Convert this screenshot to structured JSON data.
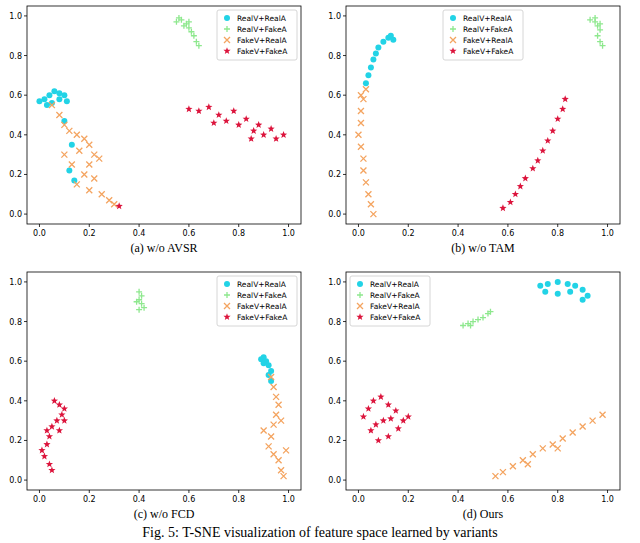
{
  "chart_data": [
    {
      "type": "scatter",
      "title": "(a) w/o AVSR",
      "legend": "upper right",
      "xlim": [
        -0.05,
        1.05
      ],
      "ylim": [
        -0.05,
        1.05
      ],
      "xticks": [
        {
          "value": 0,
          "label": "0.0"
        },
        {
          "value": 0.2,
          "label": "0.2"
        },
        {
          "value": 0.4,
          "label": "0.4"
        },
        {
          "value": 0.6,
          "label": "0.6"
        },
        {
          "value": 0.8,
          "label": "0.8"
        },
        {
          "value": 1,
          "label": "1.0"
        }
      ],
      "yticks": [
        {
          "value": 0,
          "label": "0.0"
        },
        {
          "value": 0.2,
          "label": "0.2"
        },
        {
          "value": 0.4,
          "label": "0.4"
        },
        {
          "value": 0.6,
          "label": "0.6"
        },
        {
          "value": 0.8,
          "label": "0.8"
        },
        {
          "value": 1,
          "label": "1.0"
        }
      ],
      "series": [
        {
          "name": "RealV+RealA",
          "color": "#22d3e6",
          "marker": "circle",
          "x": [
            0.0,
            0.02,
            0.04,
            0.06,
            0.08,
            0.1,
            0.05,
            0.08,
            0.11,
            0.03,
            0.13,
            0.14,
            0.1,
            0.12
          ],
          "values": [
            0.57,
            0.58,
            0.6,
            0.62,
            0.61,
            0.6,
            0.56,
            0.58,
            0.57,
            0.55,
            0.35,
            0.17,
            0.47,
            0.22
          ]
        },
        {
          "name": "RealV+FakeA",
          "color": "#8ee88e",
          "marker": "plus",
          "x": [
            0.55,
            0.57,
            0.59,
            0.6,
            0.61,
            0.62,
            0.63,
            0.64,
            0.58,
            0.56,
            0.6
          ],
          "values": [
            0.97,
            0.98,
            0.96,
            0.94,
            0.92,
            0.9,
            0.87,
            0.85,
            0.95,
            0.99,
            0.97
          ]
        },
        {
          "name": "FakeV+RealA",
          "color": "#f4a460",
          "marker": "x",
          "x": [
            0.05,
            0.08,
            0.1,
            0.12,
            0.15,
            0.18,
            0.2,
            0.22,
            0.2,
            0.18,
            0.15,
            0.2,
            0.25,
            0.28,
            0.3,
            0.1,
            0.13,
            0.24,
            0.16,
            0.22
          ],
          "values": [
            0.55,
            0.5,
            0.45,
            0.42,
            0.4,
            0.38,
            0.35,
            0.3,
            0.25,
            0.2,
            0.15,
            0.12,
            0.1,
            0.07,
            0.05,
            0.3,
            0.25,
            0.28,
            0.32,
            0.18
          ]
        },
        {
          "name": "FakeV+FakeA",
          "color": "#dc143c",
          "marker": "star",
          "x": [
            0.6,
            0.64,
            0.68,
            0.72,
            0.75,
            0.78,
            0.8,
            0.83,
            0.86,
            0.88,
            0.9,
            0.93,
            0.95,
            0.98,
            0.85,
            0.7,
            0.32
          ],
          "values": [
            0.53,
            0.52,
            0.54,
            0.5,
            0.47,
            0.52,
            0.45,
            0.48,
            0.42,
            0.45,
            0.4,
            0.43,
            0.38,
            0.4,
            0.38,
            0.46,
            0.04
          ]
        }
      ]
    },
    {
      "type": "scatter",
      "title": "(b) w/o TAM",
      "legend": "upper center",
      "xlim": [
        -0.05,
        1.05
      ],
      "ylim": [
        -0.05,
        1.05
      ],
      "xticks": [
        {
          "value": 0,
          "label": "0.0"
        },
        {
          "value": 0.2,
          "label": "0.2"
        },
        {
          "value": 0.4,
          "label": "0.4"
        },
        {
          "value": 0.6,
          "label": "0.6"
        },
        {
          "value": 0.8,
          "label": "0.8"
        },
        {
          "value": 1,
          "label": "1.0"
        }
      ],
      "yticks": [
        {
          "value": 0,
          "label": "0.0"
        },
        {
          "value": 0.2,
          "label": "0.2"
        },
        {
          "value": 0.4,
          "label": "0.4"
        },
        {
          "value": 0.6,
          "label": "0.6"
        },
        {
          "value": 0.8,
          "label": "0.8"
        },
        {
          "value": 1,
          "label": "1.0"
        }
      ],
      "series": [
        {
          "name": "RealV+RealA",
          "color": "#22d3e6",
          "marker": "circle",
          "x": [
            0.03,
            0.04,
            0.05,
            0.06,
            0.07,
            0.08,
            0.1,
            0.12,
            0.13,
            0.14
          ],
          "values": [
            0.66,
            0.7,
            0.74,
            0.78,
            0.81,
            0.84,
            0.87,
            0.89,
            0.9,
            0.88
          ]
        },
        {
          "name": "RealV+FakeA",
          "color": "#8ee88e",
          "marker": "plus",
          "x": [
            0.93,
            0.95,
            0.96,
            0.97,
            0.96,
            0.97,
            0.98,
            0.95,
            0.97
          ],
          "values": [
            0.98,
            0.97,
            0.95,
            0.93,
            0.9,
            0.87,
            0.85,
            0.99,
            0.96
          ]
        },
        {
          "name": "FakeV+RealA",
          "color": "#f4a460",
          "marker": "x",
          "x": [
            0.03,
            0.02,
            0.01,
            0.01,
            0.0,
            0.01,
            0.02,
            0.02,
            0.03,
            0.04,
            0.05,
            0.06,
            0.01
          ],
          "values": [
            0.63,
            0.58,
            0.52,
            0.46,
            0.4,
            0.34,
            0.28,
            0.22,
            0.16,
            0.1,
            0.05,
            0.0,
            0.6
          ]
        },
        {
          "name": "FakeV+FakeA",
          "color": "#dc143c",
          "marker": "star",
          "x": [
            0.58,
            0.61,
            0.63,
            0.65,
            0.67,
            0.7,
            0.72,
            0.74,
            0.76,
            0.78,
            0.8,
            0.82,
            0.83
          ],
          "values": [
            0.03,
            0.06,
            0.1,
            0.14,
            0.18,
            0.23,
            0.27,
            0.32,
            0.37,
            0.42,
            0.48,
            0.53,
            0.58
          ]
        }
      ]
    },
    {
      "type": "scatter",
      "title": "(c) w/o FCD",
      "legend": "upper right",
      "xlim": [
        -0.05,
        1.05
      ],
      "ylim": [
        -0.05,
        1.05
      ],
      "xticks": [
        {
          "value": 0,
          "label": "0.0"
        },
        {
          "value": 0.2,
          "label": "0.2"
        },
        {
          "value": 0.4,
          "label": "0.4"
        },
        {
          "value": 0.6,
          "label": "0.6"
        },
        {
          "value": 0.8,
          "label": "0.8"
        },
        {
          "value": 1,
          "label": "1.0"
        }
      ],
      "yticks": [
        {
          "value": 0,
          "label": "0.0"
        },
        {
          "value": 0.2,
          "label": "0.2"
        },
        {
          "value": 0.4,
          "label": "0.4"
        },
        {
          "value": 0.6,
          "label": "0.6"
        },
        {
          "value": 0.8,
          "label": "0.8"
        },
        {
          "value": 1,
          "label": "1.0"
        }
      ],
      "series": [
        {
          "name": "RealV+RealA",
          "color": "#22d3e6",
          "marker": "circle",
          "x": [
            0.89,
            0.9,
            0.91,
            0.92,
            0.9,
            0.93,
            0.93,
            0.92
          ],
          "values": [
            0.61,
            0.62,
            0.6,
            0.58,
            0.59,
            0.55,
            0.5,
            0.53
          ]
        },
        {
          "name": "RealV+FakeA",
          "color": "#8ee88e",
          "marker": "plus",
          "x": [
            0.4,
            0.41,
            0.4,
            0.41,
            0.42,
            0.4,
            0.39
          ],
          "values": [
            0.95,
            0.93,
            0.91,
            0.89,
            0.87,
            0.86,
            0.9
          ]
        },
        {
          "name": "FakeV+RealA",
          "color": "#f4a460",
          "marker": "x",
          "x": [
            0.93,
            0.94,
            0.95,
            0.96,
            0.95,
            0.94,
            0.93,
            0.92,
            0.94,
            0.96,
            0.97,
            0.98,
            0.9,
            0.99,
            0.97
          ],
          "values": [
            0.52,
            0.47,
            0.42,
            0.38,
            0.33,
            0.28,
            0.22,
            0.17,
            0.13,
            0.1,
            0.05,
            0.02,
            0.25,
            0.15,
            0.3
          ]
        },
        {
          "name": "FakeV+FakeA",
          "color": "#dc143c",
          "marker": "star",
          "x": [
            0.06,
            0.08,
            0.1,
            0.09,
            0.07,
            0.05,
            0.04,
            0.03,
            0.01,
            0.02,
            0.04,
            0.05,
            0.08,
            0.1,
            0.03
          ],
          "values": [
            0.4,
            0.38,
            0.36,
            0.33,
            0.3,
            0.27,
            0.22,
            0.18,
            0.15,
            0.12,
            0.08,
            0.05,
            0.25,
            0.3,
            0.25
          ]
        }
      ]
    },
    {
      "type": "scatter",
      "title": "(d) Ours",
      "legend": "upper left",
      "xlim": [
        -0.05,
        1.05
      ],
      "ylim": [
        -0.05,
        1.05
      ],
      "xticks": [
        {
          "value": 0,
          "label": "0.0"
        },
        {
          "value": 0.2,
          "label": "0.2"
        },
        {
          "value": 0.4,
          "label": "0.4"
        },
        {
          "value": 0.6,
          "label": "0.6"
        },
        {
          "value": 0.8,
          "label": "0.8"
        },
        {
          "value": 1,
          "label": "1.0"
        }
      ],
      "yticks": [
        {
          "value": 0,
          "label": "0.0"
        },
        {
          "value": 0.2,
          "label": "0.2"
        },
        {
          "value": 0.4,
          "label": "0.4"
        },
        {
          "value": 0.6,
          "label": "0.6"
        },
        {
          "value": 0.8,
          "label": "0.8"
        },
        {
          "value": 1,
          "label": "1.0"
        }
      ],
      "series": [
        {
          "name": "RealV+RealA",
          "color": "#22d3e6",
          "marker": "circle",
          "x": [
            0.73,
            0.76,
            0.8,
            0.84,
            0.87,
            0.9,
            0.92,
            0.75,
            0.8,
            0.85,
            0.9
          ],
          "values": [
            0.98,
            0.99,
            1.0,
            0.99,
            0.98,
            0.96,
            0.93,
            0.95,
            0.94,
            0.95,
            0.91
          ]
        },
        {
          "name": "RealV+FakeA",
          "color": "#8ee88e",
          "marker": "plus",
          "x": [
            0.42,
            0.44,
            0.46,
            0.48,
            0.5,
            0.52,
            0.53,
            0.45
          ],
          "values": [
            0.78,
            0.79,
            0.8,
            0.81,
            0.82,
            0.84,
            0.85,
            0.78
          ]
        },
        {
          "name": "FakeV+RealA",
          "color": "#f4a460",
          "marker": "x",
          "x": [
            0.55,
            0.58,
            0.62,
            0.66,
            0.7,
            0.74,
            0.78,
            0.82,
            0.86,
            0.9,
            0.94,
            0.98,
            0.68,
            0.8
          ],
          "values": [
            0.02,
            0.04,
            0.07,
            0.1,
            0.13,
            0.16,
            0.18,
            0.21,
            0.24,
            0.27,
            0.3,
            0.33,
            0.08,
            0.16
          ]
        },
        {
          "name": "FakeV+FakeA",
          "color": "#dc143c",
          "marker": "star",
          "x": [
            0.02,
            0.04,
            0.06,
            0.09,
            0.12,
            0.15,
            0.18,
            0.16,
            0.12,
            0.08,
            0.05,
            0.1,
            0.07,
            0.13,
            0.2
          ],
          "values": [
            0.32,
            0.36,
            0.4,
            0.42,
            0.38,
            0.35,
            0.3,
            0.26,
            0.22,
            0.2,
            0.25,
            0.3,
            0.28,
            0.31,
            0.32
          ]
        }
      ]
    }
  ],
  "caption": "Fig. 5: T-SNE visualization of feature space learned by variants"
}
